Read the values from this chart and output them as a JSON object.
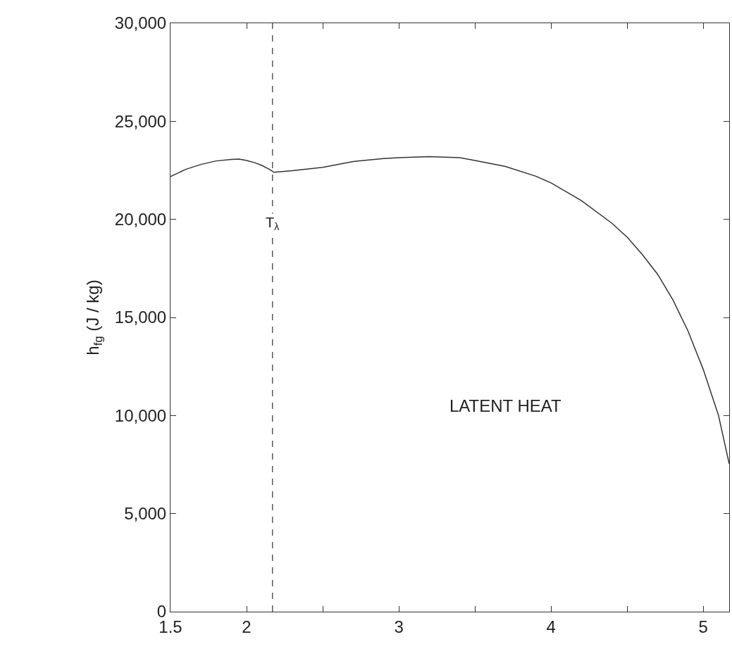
{
  "chart_data": {
    "type": "line",
    "ylabel": "h$_{fg}$ (J / kg)",
    "x": [
      1.5,
      1.6,
      1.7,
      1.8,
      1.9,
      1.95,
      2.0,
      2.05,
      2.1,
      2.15,
      2.17,
      2.18,
      2.3,
      2.5,
      2.7,
      2.9,
      3.0,
      3.2,
      3.4,
      3.5,
      3.7,
      3.9,
      4.0,
      4.2,
      4.4,
      4.5,
      4.6,
      4.7,
      4.8,
      4.9,
      5.0,
      5.1,
      5.17
    ],
    "series": [
      {
        "color": "#333333",
        "values": [
          22180,
          22550,
          22800,
          22980,
          23060,
          23070,
          23000,
          22900,
          22750,
          22550,
          22450,
          22400,
          22480,
          22650,
          22950,
          23100,
          23150,
          23200,
          23150,
          23000,
          22700,
          22200,
          21860,
          20950,
          19800,
          19090,
          18200,
          17200,
          15900,
          14300,
          12340,
          10000,
          7540
        ]
      }
    ],
    "xlim": [
      1.5,
      5.17
    ],
    "xticks": [
      1.5,
      2,
      {
        "value": 2.5,
        "label": null
      },
      3,
      {
        "value": 3.5,
        "label": null
      },
      4,
      {
        "value": 4.5,
        "label": null
      },
      5
    ],
    "ylim": [
      0,
      30000
    ],
    "yticks": [
      0,
      {
        "value": 5000,
        "label": "5,000"
      },
      {
        "value": 10000,
        "label": "10,000"
      },
      {
        "value": 15000,
        "label": "15,000"
      },
      {
        "value": 20000,
        "label": "20,000"
      },
      {
        "value": 25000,
        "label": "25,000"
      },
      {
        "value": 30000,
        "label": "30,000"
      }
    ],
    "ref_lines": [
      {
        "axis": "x",
        "value": 2.17,
        "label": "T$_{λ}$",
        "color": "#333333",
        "line_style": "dashed"
      }
    ],
    "annotations": [
      "LATENT HEAT"
    ],
    "marker": "none",
    "line_style": "solid"
  }
}
